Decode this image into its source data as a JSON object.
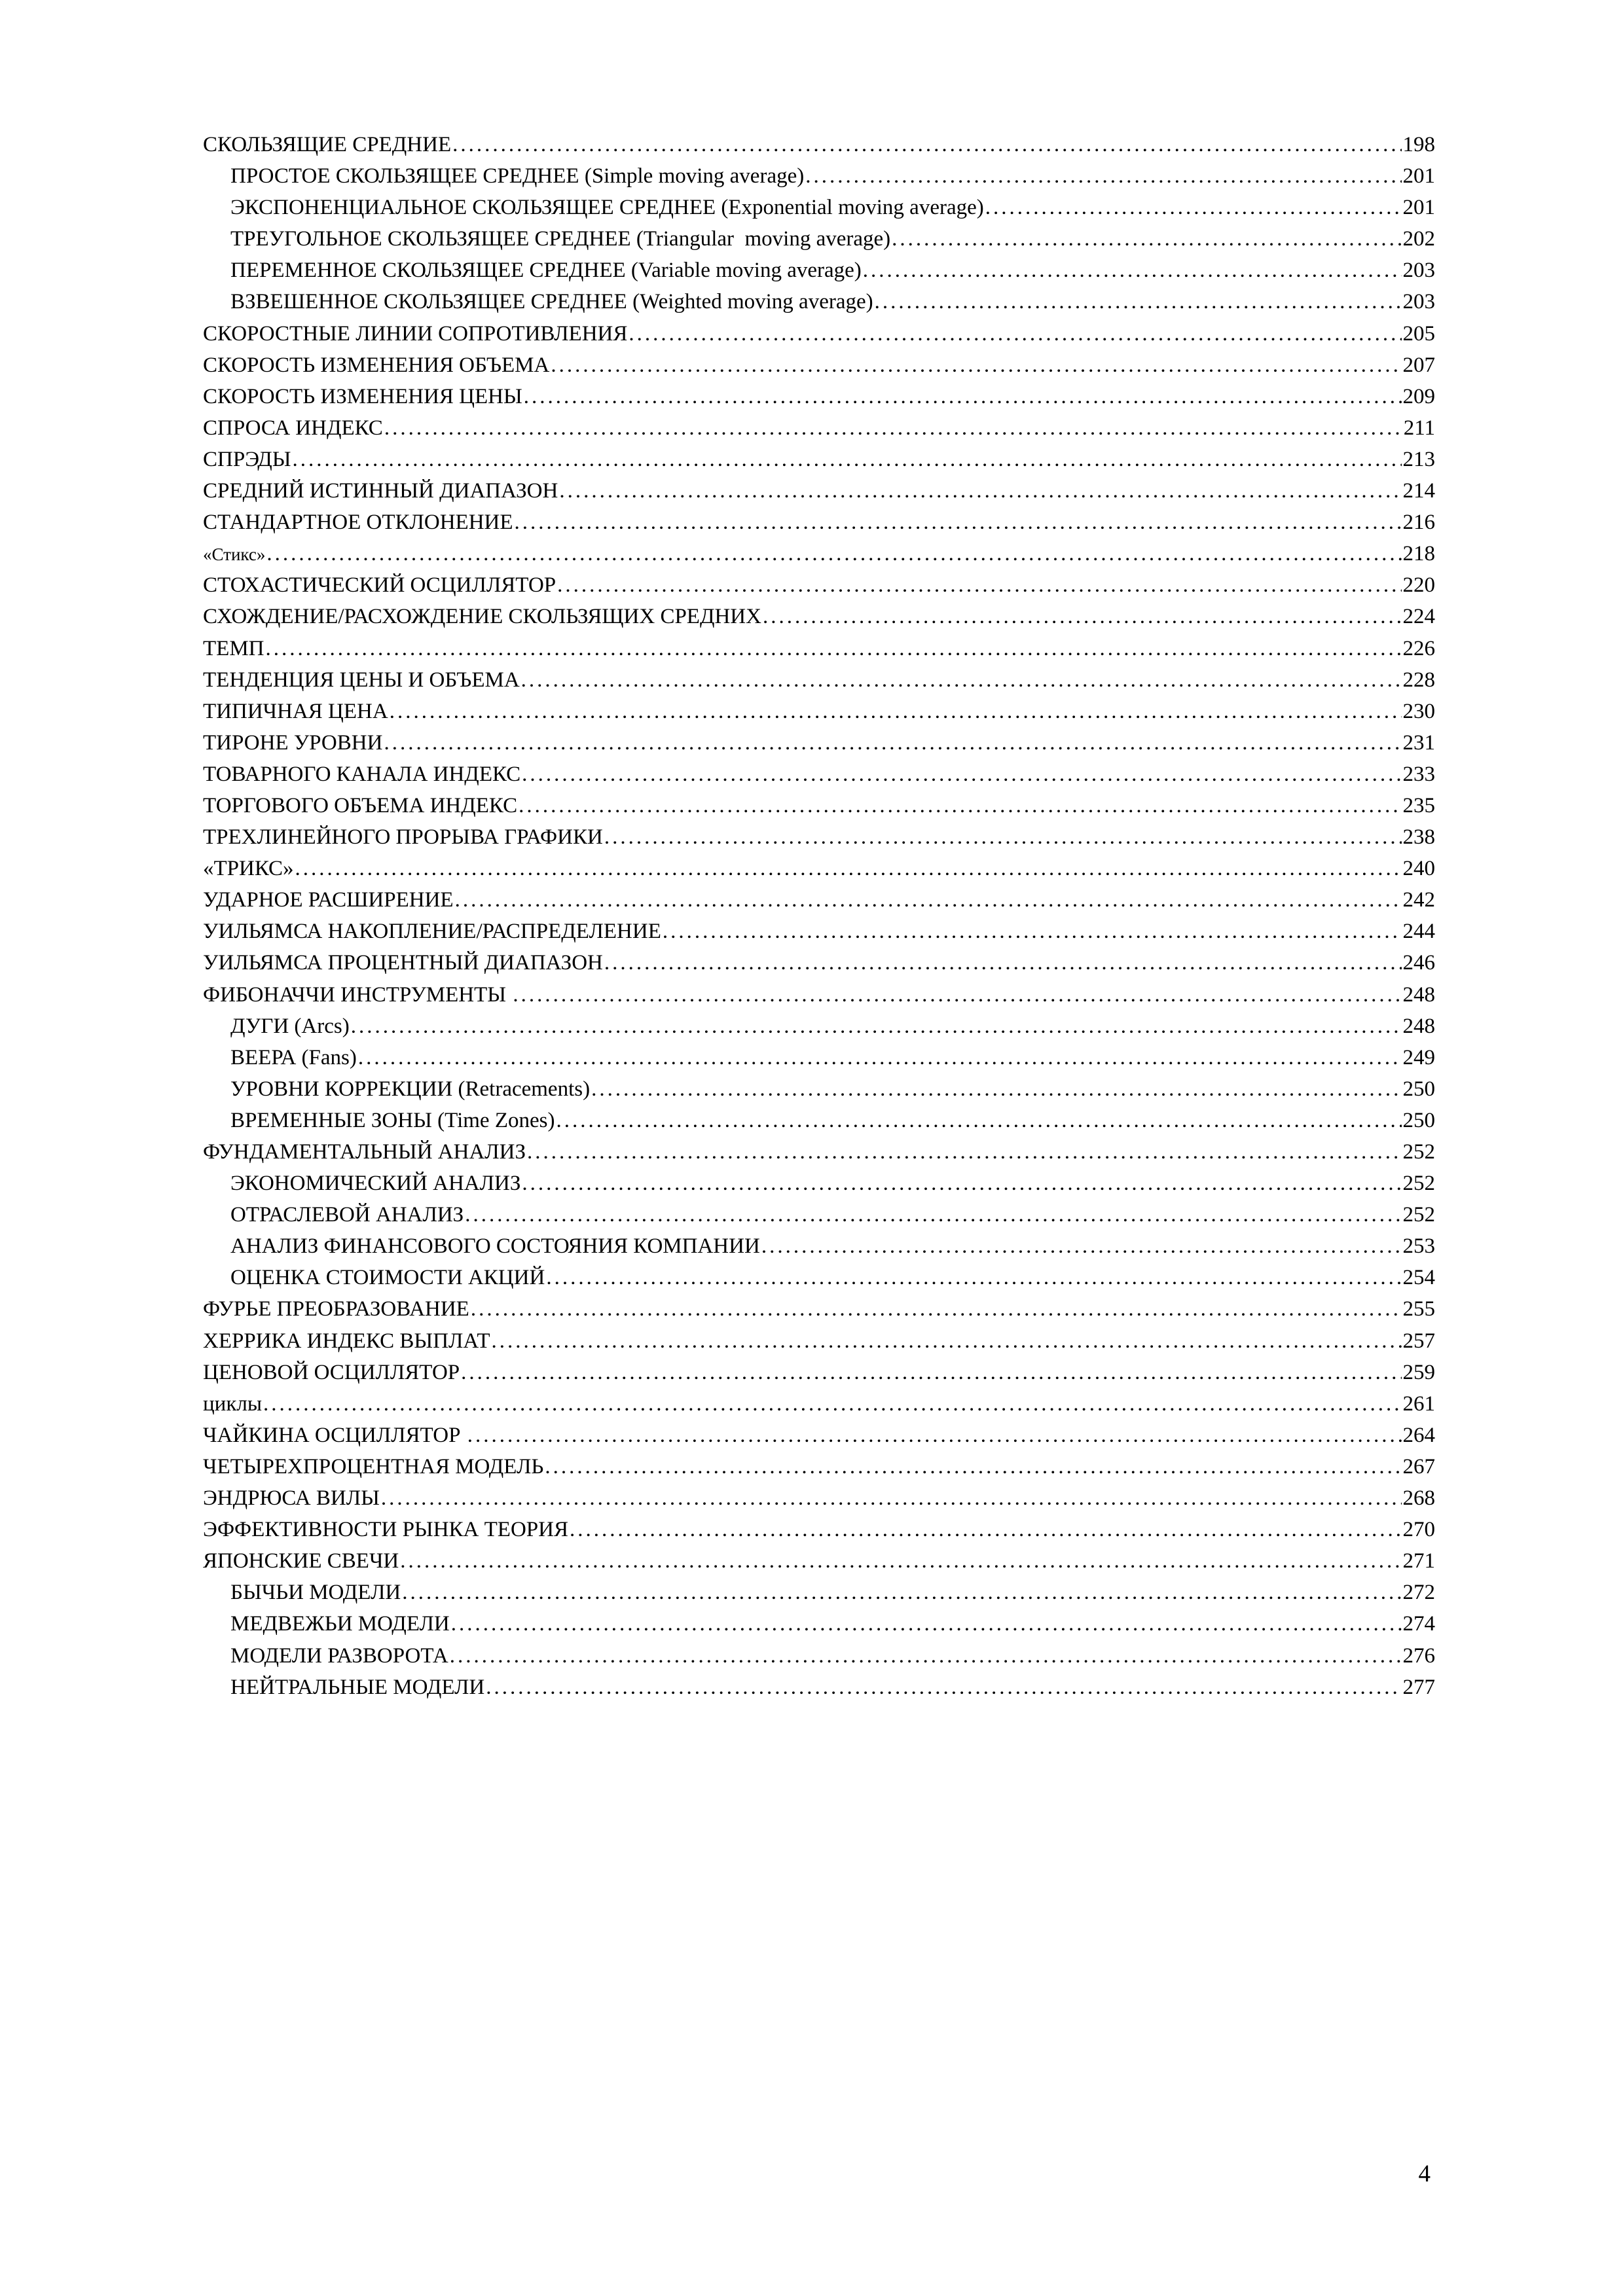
{
  "page": {
    "footer_page_number": "4"
  },
  "toc": {
    "entries": [
      {
        "label": "СКОЛЬЗЯЩИЕ СРЕДНИЕ",
        "page": "198",
        "indent": 0
      },
      {
        "label": "ПРОСТОЕ СКОЛЬЗЯЩЕЕ СРЕДНЕЕ (Simple moving average)",
        "page": "201",
        "indent": 1
      },
      {
        "label": "ЭКСПОНЕНЦИАЛЬНОЕ СКОЛЬЗЯЩЕЕ СРЕДНЕЕ (Exponential moving average)",
        "page": "201",
        "indent": 1
      },
      {
        "label": "ТРЕУГОЛЬНОЕ СКОЛЬЗЯЩЕЕ СРЕДНЕЕ (Triangular  moving average)",
        "page": "202",
        "indent": 1
      },
      {
        "label": "ПЕРЕМЕННОЕ СКОЛЬЗЯЩЕЕ СРЕДНЕЕ (Variable moving average)",
        "page": "203",
        "indent": 1
      },
      {
        "label": "ВЗВЕШЕННОЕ СКОЛЬЗЯЩЕЕ СРЕДНЕЕ (Weighted moving average)",
        "page": "203",
        "indent": 1
      },
      {
        "label": "СКОРОСТНЫЕ ЛИНИИ СОПРОТИВЛЕНИЯ",
        "page": "205",
        "indent": 0
      },
      {
        "label": "СКОРОСТЬ ИЗМЕНЕНИЯ ОБЪЕМА",
        "page": "207",
        "indent": 0
      },
      {
        "label": "СКОРОСТЬ ИЗМЕНЕНИЯ ЦЕНЫ",
        "page": "209",
        "indent": 0
      },
      {
        "label": "СПРОСА ИНДЕКС",
        "page": "211",
        "indent": 0
      },
      {
        "label": "СПРЭДЫ",
        "page": "213",
        "indent": 0
      },
      {
        "label": "СРЕДНИЙ ИСТИННЫЙ ДИАПАЗОН",
        "page": "214",
        "indent": 0
      },
      {
        "label": "СТАНДАРТНОЕ ОТКЛОНЕНИЕ",
        "page": "216",
        "indent": 0
      },
      {
        "label": "«Стикс»",
        "page": "218",
        "indent": 0,
        "small": true
      },
      {
        "label": "СТОХАСТИЧЕСКИЙ ОСЦИЛЛЯТОР",
        "page": "220",
        "indent": 0
      },
      {
        "label": "СХОЖДЕНИЕ/РАСХОЖДЕНИЕ СКОЛЬЗЯЩИХ СРЕДНИХ",
        "page": "224",
        "indent": 0
      },
      {
        "label": "ТЕМП",
        "page": "226",
        "indent": 0
      },
      {
        "label": "ТЕНДЕНЦИЯ ЦЕНЫ И ОБЪЕМА",
        "page": "228",
        "indent": 0
      },
      {
        "label": "ТИПИЧНАЯ ЦЕНА",
        "page": "230",
        "indent": 0
      },
      {
        "label": "ТИРОНЕ УРОВНИ",
        "page": "231",
        "indent": 0
      },
      {
        "label": "ТОВАРНОГО КАНАЛА ИНДЕКС",
        "page": "233",
        "indent": 0
      },
      {
        "label": "ТОРГОВОГО ОБЪЕМА ИНДЕКС",
        "page": "235",
        "indent": 0
      },
      {
        "label": "ТРЕХЛИНЕЙНОГО ПРОРЫВА ГРАФИКИ",
        "page": "238",
        "indent": 0
      },
      {
        "label": "«ТРИКС»",
        "page": "240",
        "indent": 0
      },
      {
        "label": "УДАРНОЕ РАСШИРЕНИЕ",
        "page": "242",
        "indent": 0
      },
      {
        "label": "УИЛЬЯМСА НАКОПЛЕНИЕ/РАСПРЕДЕЛЕНИЕ",
        "page": "244",
        "indent": 0
      },
      {
        "label": "УИЛЬЯМСА ПРОЦЕНТНЫЙ ДИАПАЗОН",
        "page": "246",
        "indent": 0
      },
      {
        "label": "ФИБОНАЧЧИ ИНСТРУМЕНТЫ ",
        "page": "248",
        "indent": 0
      },
      {
        "label": "ДУГИ (Arcs)",
        "page": "248",
        "indent": 1
      },
      {
        "label": "ВЕЕРА (Fans)",
        "page": "249",
        "indent": 1
      },
      {
        "label": "УРОВНИ КОРРЕКЦИИ (Retracements)",
        "page": "250",
        "indent": 1
      },
      {
        "label": "ВРЕМЕННЫЕ ЗОНЫ (Time Zones)",
        "page": "250",
        "indent": 1
      },
      {
        "label": "ФУНДАМЕНТАЛЬНЫЙ АНАЛИЗ",
        "page": "252",
        "indent": 0
      },
      {
        "label": "ЭКОНОМИЧЕСКИЙ АНАЛИЗ",
        "page": "252",
        "indent": 1
      },
      {
        "label": "ОТРАСЛЕВОЙ АНАЛИЗ",
        "page": "252",
        "indent": 1
      },
      {
        "label": "АНАЛИЗ ФИНАНСОВОГО СОСТОЯНИЯ КОМПАНИИ",
        "page": "253",
        "indent": 1
      },
      {
        "label": "ОЦЕНКА СТОИМОСТИ АКЦИЙ",
        "page": "254",
        "indent": 1
      },
      {
        "label": "ФУРЬЕ ПРЕОБРАЗОВАНИЕ",
        "page": "255",
        "indent": 0
      },
      {
        "label": "ХЕРРИКА ИНДЕКС ВЫПЛАТ",
        "page": "257",
        "indent": 0
      },
      {
        "label": "ЦЕНОВОЙ ОСЦИЛЛЯТОР",
        "page": "259",
        "indent": 0
      },
      {
        "label": "циклы",
        "page": "261",
        "indent": 0
      },
      {
        "label": "ЧАЙКИНА ОСЦИЛЛЯТОР ",
        "page": "264",
        "indent": 0
      },
      {
        "label": "ЧЕТЫРЕХПРОЦЕНТНАЯ МОДЕЛЬ",
        "page": "267",
        "indent": 0
      },
      {
        "label": "ЭНДРЮСА ВИЛЫ",
        "page": "268",
        "indent": 0
      },
      {
        "label": "ЭФФЕКТИВНОСТИ РЫНКА ТЕОРИЯ",
        "page": "270",
        "indent": 0
      },
      {
        "label": "ЯПОНСКИЕ СВЕЧИ",
        "page": "271",
        "indent": 0
      },
      {
        "label": "БЫЧЬИ МОДЕЛИ",
        "page": "272",
        "indent": 1
      },
      {
        "label": "МЕДВЕЖЬИ МОДЕЛИ",
        "page": "274",
        "indent": 1
      },
      {
        "label": "МОДЕЛИ РАЗВОРОТА",
        "page": "276",
        "indent": 1
      },
      {
        "label": "НЕЙТРАЛЬНЫЕ МОДЕЛИ",
        "page": "277",
        "indent": 1
      }
    ]
  }
}
